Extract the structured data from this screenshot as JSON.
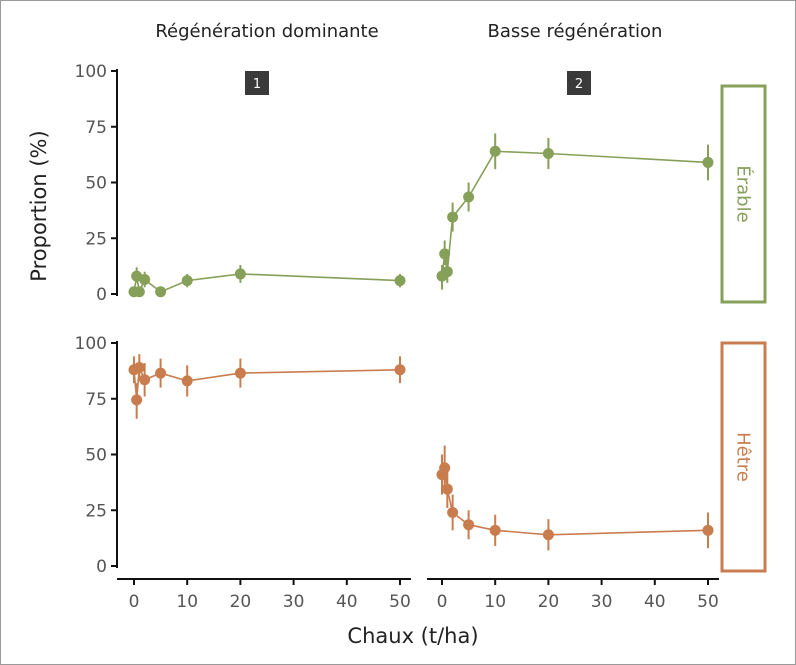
{
  "chart_data": {
    "type": "line",
    "title": "",
    "xlabel": "Chaux (t/ha)",
    "ylabel": "Proportion (%)",
    "xlim": [
      -1.5,
      54
    ],
    "ylim": [
      -3,
      100
    ],
    "x_ticks": [
      0,
      10,
      20,
      30,
      40,
      50
    ],
    "y_ticks": [
      0,
      25,
      50,
      75,
      100
    ],
    "grid": false,
    "legend": "none",
    "columns": [
      {
        "title": "Régénération dominante",
        "tag": "1"
      },
      {
        "title": "Basse régénération",
        "tag": "2"
      }
    ],
    "rows": [
      {
        "strip": "Érable",
        "color": "#86a05a"
      },
      {
        "strip": "Hêtre",
        "color": "#c97d4e"
      }
    ],
    "panels": [
      {
        "row": 0,
        "col": 0,
        "points": [
          {
            "x": 0,
            "y": 1,
            "lo": -1,
            "hi": 3
          },
          {
            "x": 0.5,
            "y": 8,
            "lo": 5,
            "hi": 12
          },
          {
            "x": 1,
            "y": 1,
            "lo": -1,
            "hi": 3
          },
          {
            "x": 2,
            "y": 6.5,
            "lo": 3,
            "hi": 10
          },
          {
            "x": 5,
            "y": 1,
            "lo": -1,
            "hi": 3
          },
          {
            "x": 10,
            "y": 6,
            "lo": 3,
            "hi": 9
          },
          {
            "x": 20,
            "y": 9,
            "lo": 5,
            "hi": 13
          },
          {
            "x": 50,
            "y": 6,
            "lo": 3,
            "hi": 9
          }
        ]
      },
      {
        "row": 0,
        "col": 1,
        "points": [
          {
            "x": 0,
            "y": 8,
            "lo": 2,
            "hi": 13
          },
          {
            "x": 0.5,
            "y": 18,
            "lo": 13,
            "hi": 24
          },
          {
            "x": 1,
            "y": 10,
            "lo": 5,
            "hi": 16
          },
          {
            "x": 2,
            "y": 34.5,
            "lo": 28,
            "hi": 41
          },
          {
            "x": 5,
            "y": 43.5,
            "lo": 37,
            "hi": 50
          },
          {
            "x": 10,
            "y": 64,
            "lo": 56,
            "hi": 72
          },
          {
            "x": 20,
            "y": 63,
            "lo": 56,
            "hi": 70
          },
          {
            "x": 50,
            "y": 59,
            "lo": 51,
            "hi": 67
          }
        ]
      },
      {
        "row": 1,
        "col": 0,
        "points": [
          {
            "x": 0,
            "y": 88,
            "lo": 82,
            "hi": 94
          },
          {
            "x": 0.5,
            "y": 74.5,
            "lo": 66,
            "hi": 82
          },
          {
            "x": 1,
            "y": 89,
            "lo": 83,
            "hi": 95
          },
          {
            "x": 2,
            "y": 83.5,
            "lo": 76,
            "hi": 91
          },
          {
            "x": 5,
            "y": 86.5,
            "lo": 80,
            "hi": 93
          },
          {
            "x": 10,
            "y": 83,
            "lo": 76,
            "hi": 90
          },
          {
            "x": 20,
            "y": 86.5,
            "lo": 80,
            "hi": 93
          },
          {
            "x": 50,
            "y": 88,
            "lo": 82,
            "hi": 94
          }
        ]
      },
      {
        "row": 1,
        "col": 1,
        "points": [
          {
            "x": 0,
            "y": 41,
            "lo": 32,
            "hi": 50
          },
          {
            "x": 0.5,
            "y": 44,
            "lo": 34,
            "hi": 54
          },
          {
            "x": 1,
            "y": 34.5,
            "lo": 26,
            "hi": 43
          },
          {
            "x": 2,
            "y": 24,
            "lo": 16,
            "hi": 32
          },
          {
            "x": 5,
            "y": 18.5,
            "lo": 12,
            "hi": 25
          },
          {
            "x": 10,
            "y": 16,
            "lo": 9,
            "hi": 23
          },
          {
            "x": 20,
            "y": 14,
            "lo": 7,
            "hi": 21
          },
          {
            "x": 50,
            "y": 16,
            "lo": 8,
            "hi": 24
          }
        ]
      }
    ]
  }
}
